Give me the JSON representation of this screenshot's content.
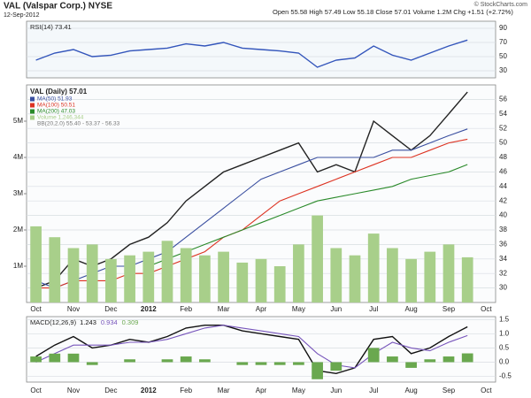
{
  "header": {
    "symbol": "VAL (Valspar Corp.) NYSE",
    "date": "12-Sep-2012",
    "quote": "Open 55.58 High 57.49 Low 55.18 Close 57.01 Volume 1.2M Chg +1.51 (+2.72%)",
    "source": "© StockCharts.com"
  },
  "chart_data": [
    {
      "type": "line",
      "title": "RSI(14) 73.41",
      "series": [
        {
          "name": "RSI(14)",
          "color": "#3355bb",
          "values": [
            45,
            55,
            60,
            50,
            52,
            58,
            60,
            62,
            68,
            65,
            70,
            62,
            60,
            58,
            55,
            35,
            45,
            48,
            65,
            52,
            45,
            55,
            65,
            73.41,
            null
          ]
        }
      ],
      "ylim": [
        20,
        100
      ],
      "yticks": [
        30,
        50,
        70,
        90
      ],
      "grid": true
    },
    {
      "type": "line",
      "title": "VAL (Daily) 57.01",
      "categories": [
        "Oct",
        null,
        "Nov",
        null,
        "Dec",
        null,
        "2012",
        null,
        "Feb",
        null,
        "Mar",
        null,
        "Apr",
        null,
        "May",
        null,
        "Jun",
        null,
        "Jul",
        null,
        "Aug",
        null,
        "Sep",
        null,
        "Oct"
      ],
      "series": [
        {
          "name": "VAL (Daily) 57.01",
          "color": "#222222",
          "values": [
            30,
            31,
            34,
            33,
            34,
            36,
            37,
            39,
            42,
            44,
            46,
            47,
            48,
            49,
            50,
            46,
            47,
            46,
            53,
            51,
            49,
            51,
            54,
            57.01,
            null
          ]
        },
        {
          "name": "MA(50) 51.93",
          "color": "#3a4fa0",
          "values": [
            31,
            30,
            31,
            32,
            33,
            33,
            34,
            35,
            37,
            39,
            41,
            43,
            45,
            46,
            47,
            48,
            48,
            48,
            48,
            49,
            49,
            50,
            51,
            51.93,
            null
          ]
        },
        {
          "name": "MA(100) 50.51",
          "color": "#dd3322",
          "values": [
            30,
            30,
            31,
            31,
            31,
            32,
            32,
            33,
            34,
            35,
            37,
            38,
            40,
            42,
            43,
            44,
            45,
            46,
            47,
            48,
            48,
            49,
            50,
            50.51,
            null
          ]
        },
        {
          "name": "MA(200) 47.03",
          "color": "#2a8a2a",
          "values": [
            null,
            null,
            null,
            null,
            null,
            null,
            33,
            34,
            35,
            36,
            37,
            38,
            39,
            40,
            41,
            42,
            42.5,
            43,
            43.5,
            44,
            45,
            45.5,
            46,
            47.03,
            null
          ]
        },
        {
          "name": "Volume 1,246,344",
          "color": "#a8cf8a",
          "type": "bar",
          "axis": "y2",
          "values": [
            2100000,
            1800000,
            1500000,
            1600000,
            1200000,
            1300000,
            1400000,
            1700000,
            1500000,
            1300000,
            1400000,
            1100000,
            1200000,
            1000000,
            1600000,
            2400000,
            1500000,
            1300000,
            1900000,
            1500000,
            1200000,
            1400000,
            1600000,
            1246344,
            null
          ]
        }
      ],
      "annotations": [
        "BB(20,2.0) 55.40 - 53.37 - 56.33"
      ],
      "ylim": [
        28,
        58
      ],
      "yticks": [
        30,
        32,
        34,
        36,
        38,
        40,
        42,
        44,
        46,
        48,
        50,
        52,
        54,
        56
      ],
      "y2lim": [
        0,
        6000000
      ],
      "y2ticks": [
        {
          "value": 1000000,
          "label": "1M"
        },
        {
          "value": 2000000,
          "label": "2M"
        },
        {
          "value": 3000000,
          "label": "3M"
        },
        {
          "value": 4000000,
          "label": "4M"
        },
        {
          "value": 5000000,
          "label": "5M"
        }
      ],
      "grid": true
    },
    {
      "type": "line",
      "title": "MACD(12,26,9)",
      "categories": [
        "Oct",
        null,
        "Nov",
        null,
        "Dec",
        null,
        "2012",
        null,
        "Feb",
        null,
        "Mar",
        null,
        "Apr",
        null,
        "May",
        null,
        "Jun",
        null,
        "Jul",
        null,
        "Aug",
        null,
        "Sep",
        null,
        "Oct"
      ],
      "series": [
        {
          "name": "1.243",
          "color": "#111111",
          "values": [
            0.2,
            0.6,
            0.9,
            0.5,
            0.6,
            0.8,
            0.7,
            0.9,
            1.2,
            1.3,
            1.3,
            1.1,
            1.0,
            0.9,
            0.8,
            -0.3,
            -0.4,
            -0.2,
            0.8,
            0.9,
            0.3,
            0.5,
            0.9,
            1.243,
            null
          ]
        },
        {
          "name": "0.934",
          "color": "#7755bb",
          "values": [
            0.0,
            0.3,
            0.6,
            0.6,
            0.6,
            0.7,
            0.7,
            0.8,
            1.0,
            1.2,
            1.3,
            1.2,
            1.1,
            1.0,
            0.9,
            0.3,
            -0.1,
            -0.2,
            0.3,
            0.7,
            0.5,
            0.4,
            0.7,
            0.934,
            null
          ]
        },
        {
          "name": "0.309",
          "color": "#6aa84f",
          "type": "bar",
          "values": [
            0.2,
            0.3,
            0.3,
            -0.1,
            0,
            0.1,
            0,
            0.1,
            0.2,
            0.1,
            0,
            -0.1,
            -0.1,
            -0.1,
            -0.1,
            -0.6,
            -0.3,
            0,
            0.5,
            0.2,
            -0.2,
            0.1,
            0.2,
            0.309,
            null
          ]
        }
      ],
      "ylim": [
        -0.7,
        1.6
      ],
      "yticks": [
        -0.5,
        {
          "value": 0,
          "label": "0.0"
        },
        0.5,
        {
          "value": 1,
          "label": "1.0"
        },
        1.5
      ],
      "grid": true
    }
  ]
}
